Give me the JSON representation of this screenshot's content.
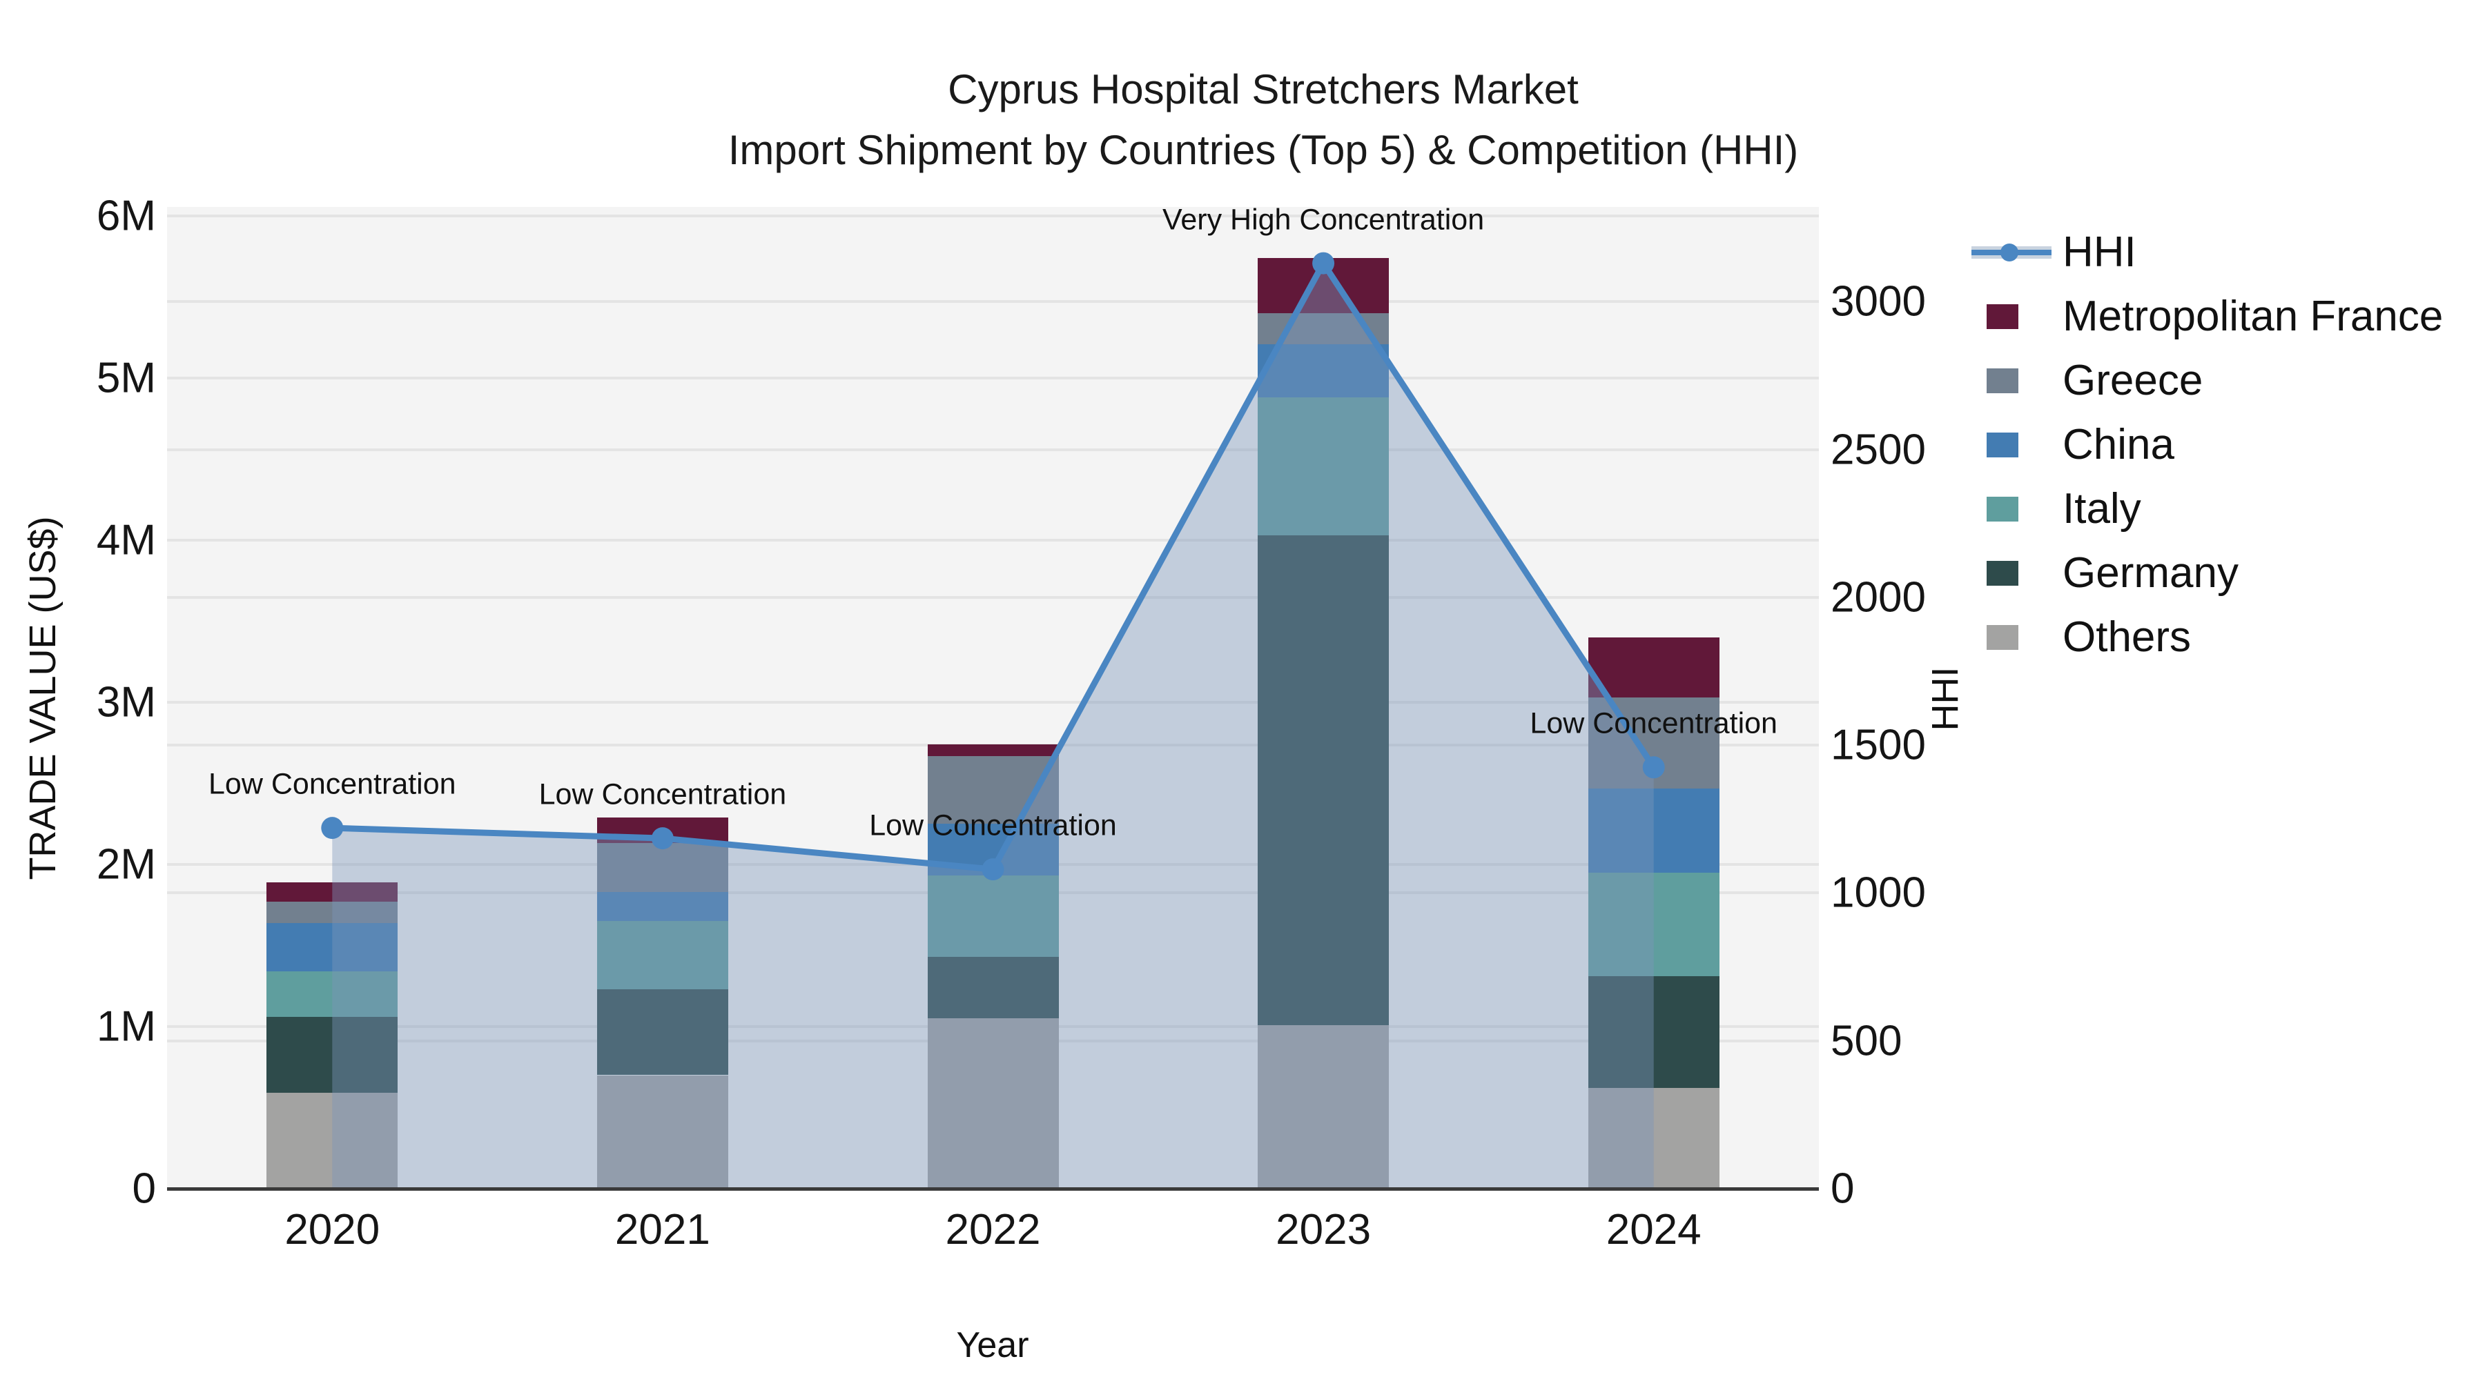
{
  "title": {
    "line1": "Cyprus Hospital Stretchers Market",
    "line2": "Import Shipment by Countries (Top 5) & Competition (HHI)"
  },
  "axes": {
    "y_left": {
      "title": "TRADE VALUE (US$)",
      "tick_labels": [
        "0",
        "1M",
        "2M",
        "3M",
        "4M",
        "5M",
        "6M"
      ],
      "tick_values_musd": [
        0,
        1,
        2,
        3,
        4,
        5,
        6
      ]
    },
    "y_right": {
      "title": "HHI",
      "tick_labels": [
        "0",
        "500",
        "1000",
        "1500",
        "2000",
        "2500",
        "3000"
      ],
      "tick_values": [
        0,
        500,
        1000,
        1500,
        2000,
        2500,
        3000
      ]
    },
    "x": {
      "title": "Year",
      "tick_labels": [
        "2020",
        "2021",
        "2022",
        "2023",
        "2024"
      ]
    }
  },
  "legend": {
    "items": [
      {
        "label": "HHI",
        "type": "line"
      },
      {
        "label": "Metropolitan France",
        "type": "patch"
      },
      {
        "label": "Greece",
        "type": "patch"
      },
      {
        "label": "China",
        "type": "patch"
      },
      {
        "label": "Italy",
        "type": "patch"
      },
      {
        "label": "Germany",
        "type": "patch"
      },
      {
        "label": "Others",
        "type": "patch"
      }
    ]
  },
  "annotations": [
    {
      "category": "2020",
      "text": "Low Concentration"
    },
    {
      "category": "2021",
      "text": "Low Concentration"
    },
    {
      "category": "2022",
      "text": "Low Concentration"
    },
    {
      "category": "2023",
      "text": "Very High Concentration"
    },
    {
      "category": "2024",
      "text": "Low Concentration"
    }
  ],
  "colors": {
    "metropolitan_france": "#611839",
    "greece": "#72808F",
    "china": "#437CB2",
    "italy": "#5F9E9E",
    "germany": "#2E4B4B",
    "others": "#A3A3A2",
    "hhi_line": "#4A86C2",
    "hhi_area": "rgba(125,150,185,0.42)",
    "hhi_legend_band": "#C9D3DF",
    "plot_background": "#f4f4f4",
    "gridline": "#e4e4e4",
    "axis_line": "#3a3a3a"
  },
  "chart_data": {
    "type": "bar+line",
    "unit": "US$ millions (left axis), HHI index (right axis)",
    "categories": [
      "2020",
      "2021",
      "2022",
      "2023",
      "2024"
    ],
    "bar_series_bottom_to_top": [
      {
        "name": "Others",
        "color": "#A3A3A2",
        "values": [
          0.59,
          0.7,
          1.05,
          1.01,
          0.62
        ]
      },
      {
        "name": "Germany",
        "color": "#2E4B4B",
        "values": [
          0.47,
          0.53,
          0.38,
          3.02,
          0.69
        ]
      },
      {
        "name": "Italy",
        "color": "#5F9E9E",
        "values": [
          0.28,
          0.42,
          0.5,
          0.85,
          0.64
        ]
      },
      {
        "name": "China",
        "color": "#437CB2",
        "values": [
          0.3,
          0.18,
          0.32,
          0.33,
          0.52
        ]
      },
      {
        "name": "Greece",
        "color": "#72808F",
        "values": [
          0.13,
          0.3,
          0.42,
          0.19,
          0.56
        ]
      },
      {
        "name": "Metropolitan France",
        "color": "#611839",
        "values": [
          0.12,
          0.16,
          0.07,
          0.34,
          0.37
        ]
      }
    ],
    "bar_totals_musd": [
      1.89,
      2.29,
      2.74,
      5.74,
      3.4
    ],
    "hhi_series": {
      "name": "HHI",
      "color": "#4A86C2",
      "values": [
        1220,
        1185,
        1080,
        3130,
        1425
      ]
    },
    "ylim_left_musd": [
      0,
      6.05
    ],
    "ylim_right_hhi": [
      0,
      3320
    ],
    "grid": true,
    "legend_position": "right-outside"
  }
}
